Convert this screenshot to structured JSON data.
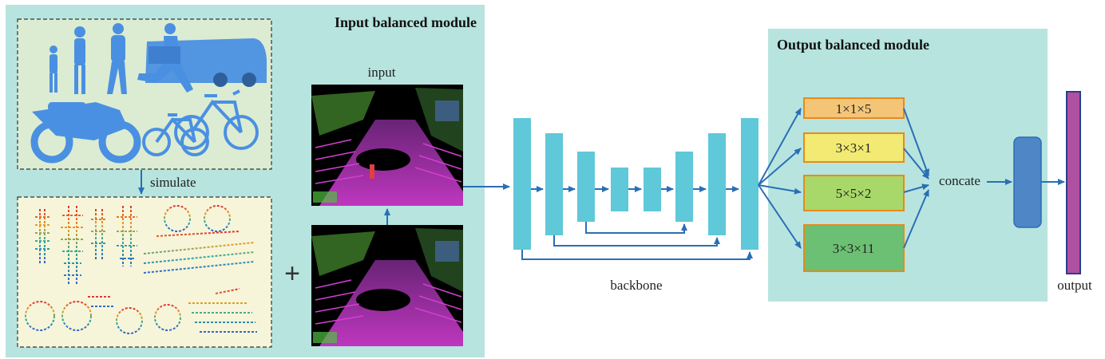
{
  "input_module": {
    "title": "Input balanced module",
    "simulate_label": "simulate",
    "input_label": "input",
    "plus_sign": "+",
    "models_panel_icon": "3d-pedestrian-car-bike-models",
    "pointcloud_panel_icon": "simulated-colored-point-clouds",
    "lidar_scan_icon": "lidar-point-cloud-scene"
  },
  "backbone": {
    "label": "backbone"
  },
  "output_module": {
    "title": "Output balanced module",
    "branches": [
      {
        "label": "1×1×5",
        "fill": "#f5c577"
      },
      {
        "label": "3×3×1",
        "fill": "#f2ea72"
      },
      {
        "label": "5×5×2",
        "fill": "#a8d86a"
      },
      {
        "label": "3×3×11",
        "fill": "#6cc073"
      }
    ],
    "concat_label": "concate",
    "output_label": "output"
  },
  "colors": {
    "panel_bg": "#b7e4df",
    "block_fill": "#5fc8d9",
    "arrow": "#2a6fb5",
    "branch_border": "#e88a1a",
    "fusion_block": "#4f86c6",
    "output_bar": "#b050a0"
  }
}
